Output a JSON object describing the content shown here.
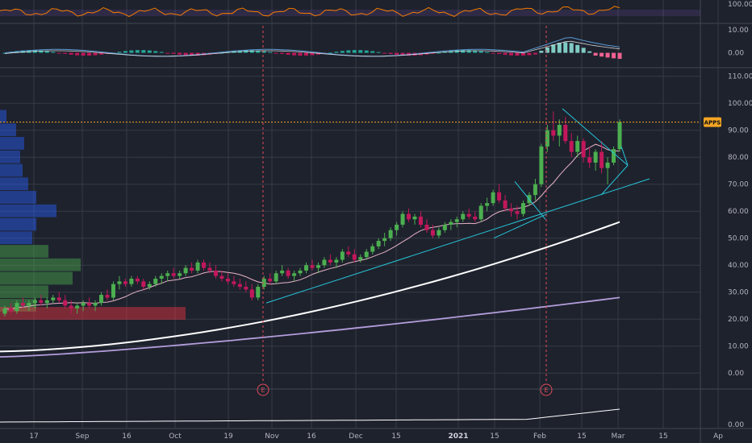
{
  "chart_data": {
    "type": "candlestick",
    "ticker": "APPS",
    "last_price": 93,
    "panes": {
      "rsi": {
        "axis_labels": [
          "100.00"
        ],
        "ylim": [
          0,
          100
        ]
      },
      "macd": {
        "axis_labels": [
          "10.00",
          "0.00"
        ],
        "ylim": [
          -5,
          12
        ]
      },
      "price": {
        "axis_labels": [
          "110.00",
          "100.00",
          "90.00",
          "80.00",
          "70.00",
          "60.00",
          "50.00",
          "40.00",
          "30.00",
          "20.00",
          "10.00",
          "0.00"
        ],
        "ylim": [
          -5,
          112
        ]
      },
      "volume": {
        "axis_labels": [
          "0.00"
        ]
      }
    },
    "x_labels": [
      "17",
      "Sep",
      "16",
      "Oct",
      "19",
      "Nov",
      "16",
      "Dec",
      "15",
      "2021",
      "15",
      "Feb",
      "15",
      "Mar",
      "15",
      "Ap"
    ],
    "year_label": "2021",
    "earnings_markers": [
      {
        "label": "E",
        "date": "Nov"
      },
      {
        "label": "E",
        "date": "Feb"
      }
    ],
    "colors": {
      "background": "#1e222d",
      "grid": "#363a45",
      "up": "#4caf50",
      "down": "#c2185b",
      "ma_fast": "#e8b4c8",
      "ma_mid": "#ffffff",
      "ma_slow": "#b39ddb",
      "trendline": "#26c6da",
      "rsi": "#f57c00",
      "macd": "#5b9bd5",
      "signal": "#ffffff",
      "price_line": "#f5a623",
      "earnings": "#e04a59"
    },
    "candles": [
      [
        22,
        25,
        21,
        24
      ],
      [
        24,
        26,
        22,
        23
      ],
      [
        23,
        27,
        22,
        26
      ],
      [
        26,
        28,
        24,
        25
      ],
      [
        25,
        27,
        23,
        26
      ],
      [
        26,
        28,
        24,
        27
      ],
      [
        27,
        29,
        25,
        26
      ],
      [
        26,
        28,
        24,
        27
      ],
      [
        27,
        29,
        26,
        28
      ],
      [
        28,
        30,
        26,
        27
      ],
      [
        27,
        29,
        24,
        25
      ],
      [
        25,
        27,
        22,
        24
      ],
      [
        24,
        26,
        22,
        25
      ],
      [
        25,
        27,
        23,
        26
      ],
      [
        26,
        28,
        24,
        25
      ],
      [
        25,
        27,
        23,
        26
      ],
      [
        26,
        30,
        25,
        29
      ],
      [
        29,
        31,
        27,
        28
      ],
      [
        28,
        34,
        27,
        33
      ],
      [
        33,
        36,
        31,
        34
      ],
      [
        34,
        35,
        32,
        33
      ],
      [
        33,
        36,
        32,
        35
      ],
      [
        35,
        36,
        33,
        34
      ],
      [
        34,
        35,
        31,
        32
      ],
      [
        32,
        34,
        31,
        33
      ],
      [
        33,
        36,
        32,
        35
      ],
      [
        35,
        37,
        33,
        36
      ],
      [
        36,
        38,
        34,
        37
      ],
      [
        37,
        39,
        35,
        36
      ],
      [
        36,
        38,
        35,
        37
      ],
      [
        37,
        40,
        36,
        39
      ],
      [
        39,
        41,
        37,
        38
      ],
      [
        38,
        42,
        37,
        41
      ],
      [
        41,
        42,
        38,
        39
      ],
      [
        39,
        41,
        37,
        38
      ],
      [
        38,
        40,
        35,
        36
      ],
      [
        36,
        38,
        34,
        35
      ],
      [
        35,
        37,
        33,
        34
      ],
      [
        34,
        36,
        32,
        33
      ],
      [
        33,
        35,
        31,
        32
      ],
      [
        32,
        34,
        30,
        31
      ],
      [
        31,
        33,
        27,
        28
      ],
      [
        28,
        33,
        27,
        32
      ],
      [
        32,
        36,
        31,
        35
      ],
      [
        35,
        37,
        33,
        34
      ],
      [
        34,
        38,
        33,
        37
      ],
      [
        37,
        40,
        36,
        38
      ],
      [
        38,
        39,
        35,
        36
      ],
      [
        36,
        38,
        34,
        37
      ],
      [
        37,
        39,
        36,
        38
      ],
      [
        38,
        41,
        37,
        40
      ],
      [
        40,
        42,
        38,
        39
      ],
      [
        39,
        41,
        37,
        40
      ],
      [
        40,
        43,
        39,
        42
      ],
      [
        42,
        44,
        40,
        41
      ],
      [
        41,
        43,
        39,
        42
      ],
      [
        42,
        46,
        41,
        45
      ],
      [
        45,
        47,
        43,
        44
      ],
      [
        44,
        46,
        41,
        42
      ],
      [
        42,
        44,
        41,
        43
      ],
      [
        43,
        46,
        42,
        45
      ],
      [
        45,
        48,
        44,
        47
      ],
      [
        47,
        50,
        46,
        49
      ],
      [
        49,
        52,
        47,
        50
      ],
      [
        50,
        54,
        49,
        53
      ],
      [
        53,
        56,
        51,
        55
      ],
      [
        55,
        60,
        54,
        59
      ],
      [
        59,
        61,
        56,
        57
      ],
      [
        57,
        59,
        55,
        58
      ],
      [
        58,
        60,
        54,
        55
      ],
      [
        55,
        57,
        52,
        53
      ],
      [
        53,
        55,
        50,
        51
      ],
      [
        51,
        54,
        50,
        53
      ],
      [
        53,
        56,
        52,
        55
      ],
      [
        55,
        57,
        53,
        56
      ],
      [
        56,
        58,
        54,
        57
      ],
      [
        57,
        60,
        56,
        59
      ],
      [
        59,
        61,
        57,
        58
      ],
      [
        58,
        60,
        56,
        57
      ],
      [
        57,
        63,
        56,
        62
      ],
      [
        62,
        65,
        60,
        63
      ],
      [
        63,
        68,
        62,
        67
      ],
      [
        67,
        70,
        63,
        64
      ],
      [
        64,
        66,
        60,
        61
      ],
      [
        61,
        63,
        58,
        60
      ],
      [
        60,
        62,
        57,
        59
      ],
      [
        59,
        64,
        58,
        63
      ],
      [
        63,
        67,
        62,
        66
      ],
      [
        66,
        72,
        64,
        70
      ],
      [
        70,
        85,
        69,
        84
      ],
      [
        84,
        92,
        82,
        90
      ],
      [
        90,
        97,
        86,
        88
      ],
      [
        88,
        94,
        84,
        92
      ],
      [
        92,
        95,
        85,
        86
      ],
      [
        86,
        89,
        80,
        82
      ],
      [
        82,
        88,
        80,
        86
      ],
      [
        86,
        87,
        78,
        80
      ],
      [
        80,
        84,
        76,
        78
      ],
      [
        78,
        83,
        75,
        82
      ],
      [
        82,
        86,
        74,
        76
      ],
      [
        76,
        80,
        70,
        78
      ],
      [
        78,
        84,
        77,
        83
      ],
      [
        83,
        94,
        82,
        93
      ]
    ]
  }
}
